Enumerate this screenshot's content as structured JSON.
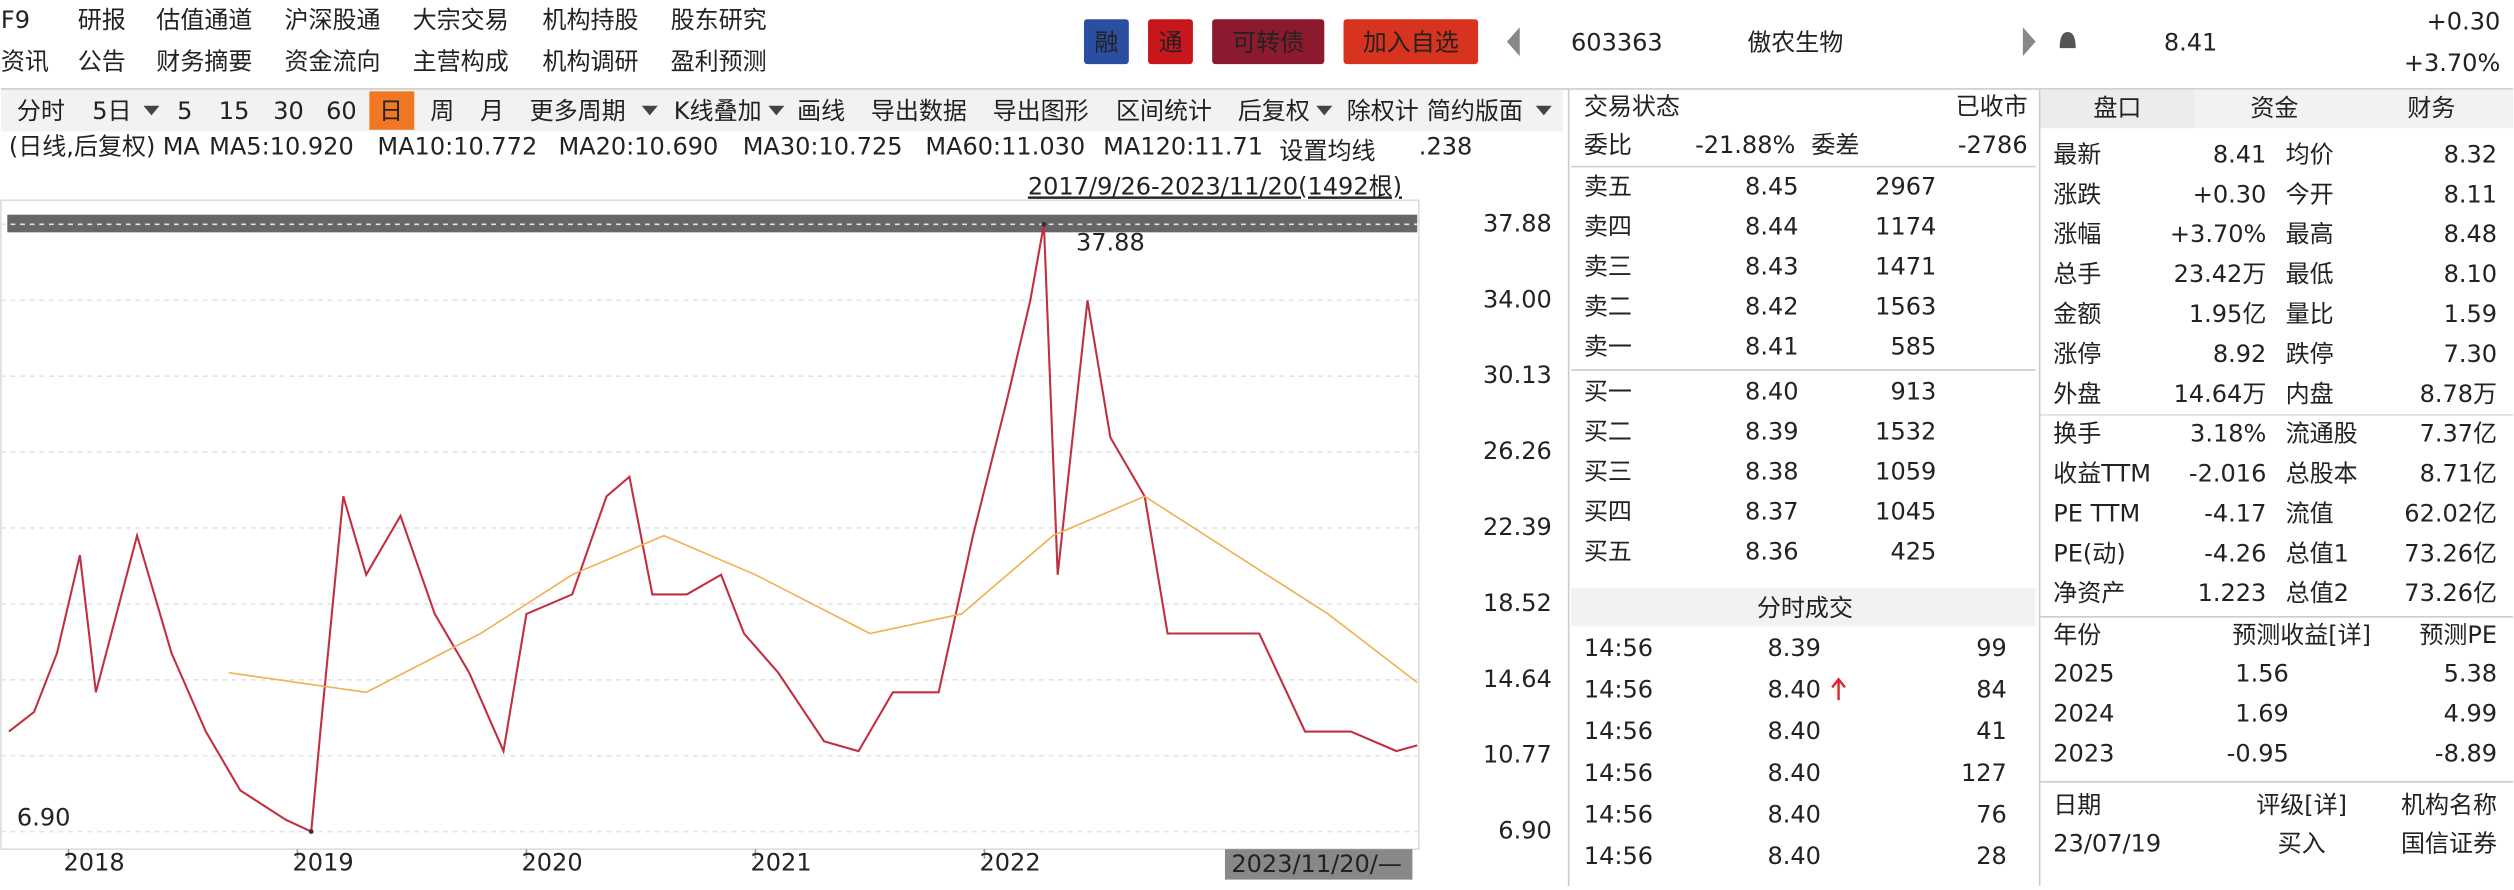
{
  "top_menu": {
    "rows": [
      [
        "F9",
        "研报",
        "估值通道",
        "沪深股通",
        "大宗交易",
        "机构持股",
        "股东研究"
      ],
      [
        "资讯",
        "公告",
        "财务摘要",
        "资金流向",
        "主营构成",
        "机构调研",
        "盈利预测"
      ]
    ]
  },
  "badges": [
    "融",
    "通",
    "可转债",
    "加入自选"
  ],
  "stock": {
    "code": "603363",
    "name": "傲农生物",
    "price": "8.41",
    "change": "+0.30",
    "change_pct": "+3.70%"
  },
  "toolbar": [
    "分时",
    "5日",
    "5",
    "15",
    "30",
    "60",
    "日",
    "周",
    "月",
    "更多周期",
    "K线叠加",
    "画线",
    "导出数据",
    "导出图形",
    "区间统计",
    "后复权",
    "除权计",
    "简约版面"
  ],
  "ma_legend": [
    "(日线,后复权)",
    "MA",
    "MA5:10.920",
    "MA10:10.772",
    "MA20:10.690",
    "MA30:10.725",
    "MA60:11.030",
    "MA120:11.71",
    ".238"
  ],
  "ma_button": "设置均线",
  "range_label": "2017/9/26-2023/11/20(1492根)",
  "chart_data": {
    "type": "line",
    "xlim": [
      2017.74,
      2023.89
    ],
    "xticks": [
      2018,
      2019,
      2020,
      2021,
      2022
    ],
    "x_end_label": "2023/11/20/—",
    "ylim": [
      6.9,
      37.88
    ],
    "yticks": [
      {
        "value": 6.9,
        "label": "6.90"
      },
      10.77,
      14.64,
      18.52,
      22.39,
      26.26,
      30.13,
      {
        "value": 34,
        "label": "34.00"
      },
      37.88
    ],
    "annotations": [
      {
        "x": 2022.26,
        "y": 37.88,
        "label": "37.88"
      },
      {
        "x": 2019.06,
        "y": 6.9,
        "label": "6.90"
      }
    ],
    "series": [
      {
        "name": "price",
        "color": "#c03040",
        "x": [
          2017.74,
          2017.85,
          2017.95,
          2018.05,
          2018.12,
          2018.3,
          2018.45,
          2018.6,
          2018.75,
          2018.95,
          2019.06,
          2019.1,
          2019.2,
          2019.3,
          2019.45,
          2019.6,
          2019.75,
          2019.9,
          2020.0,
          2020.2,
          2020.35,
          2020.45,
          2020.55,
          2020.7,
          2020.85,
          2020.95,
          2021.1,
          2021.3,
          2021.45,
          2021.6,
          2021.8,
          2021.95,
          2022.1,
          2022.2,
          2022.26,
          2022.32,
          2022.45,
          2022.55,
          2022.7,
          2022.8,
          2023.0,
          2023.2,
          2023.4,
          2023.6,
          2023.8,
          2023.89
        ],
        "values": [
          12,
          13,
          16,
          21,
          14,
          22,
          16,
          12,
          9,
          7.5,
          6.9,
          12,
          24,
          20,
          23,
          18,
          15,
          11,
          18,
          19,
          24,
          25,
          19,
          19,
          20,
          17,
          15,
          11.5,
          11,
          14,
          14,
          22,
          29,
          34,
          37.88,
          20,
          34,
          27,
          24,
          17,
          17,
          17,
          12,
          12,
          11,
          11.3
        ]
      },
      {
        "name": "ma",
        "color": "#f0b050",
        "x": [
          2018.7,
          2019.3,
          2019.8,
          2020.2,
          2020.6,
          2021.0,
          2021.5,
          2021.9,
          2022.3,
          2022.7,
          2023.1,
          2023.5,
          2023.89
        ],
        "values": [
          15,
          14,
          17,
          20,
          22,
          20,
          17,
          18,
          22,
          24,
          21,
          18,
          14.5
        ]
      }
    ]
  },
  "order_book": {
    "status_label": "交易状态",
    "status": "已收市",
    "ratio_label": "委比",
    "ratio": "-21.88%",
    "diff_label": "委差",
    "diff": "-2786",
    "rows": [
      [
        "卖五",
        "8.45",
        "2967"
      ],
      [
        "卖四",
        "8.44",
        "1174"
      ],
      [
        "卖三",
        "8.43",
        "1471"
      ],
      [
        "卖二",
        "8.42",
        "1563"
      ],
      [
        "卖一",
        "8.41",
        "585"
      ],
      [
        "买一",
        "8.40",
        "913"
      ],
      [
        "买二",
        "8.39",
        "1532"
      ],
      [
        "买三",
        "8.38",
        "1059"
      ],
      [
        "买四",
        "8.37",
        "1045"
      ],
      [
        "买五",
        "8.36",
        "425"
      ]
    ]
  },
  "trades": {
    "title": "分时成交",
    "rows": [
      [
        "14:56",
        "8.39",
        "99"
      ],
      [
        "14:56",
        "8.40",
        "84"
      ],
      [
        "14:56",
        "8.40",
        "41"
      ],
      [
        "14:56",
        "8.40",
        "127"
      ],
      [
        "14:56",
        "8.40",
        "76"
      ],
      [
        "14:56",
        "8.40",
        "28"
      ]
    ]
  },
  "tabs": [
    "盘口",
    "资金",
    "财务"
  ],
  "quote": [
    [
      "最新",
      "8.41",
      "均价",
      "8.32"
    ],
    [
      "涨跌",
      "+0.30",
      "今开",
      "8.11"
    ],
    [
      "涨幅",
      "+3.70%",
      "最高",
      "8.48"
    ],
    [
      "总手",
      "23.42万",
      "最低",
      "8.10"
    ],
    [
      "金额",
      "1.95亿",
      "量比",
      "1.59"
    ],
    [
      "涨停",
      "8.92",
      "跌停",
      "7.30"
    ],
    [
      "外盘",
      "14.64万",
      "内盘",
      "8.78万"
    ],
    [
      "换手",
      "3.18%",
      "流通股",
      "7.37亿"
    ],
    [
      "收益TTM",
      "-2.016",
      "总股本",
      "8.71亿"
    ],
    [
      "PE TTM",
      "-4.17",
      "流值",
      "62.02亿"
    ],
    [
      "PE(动)",
      "-4.26",
      "总值1",
      "73.26亿"
    ],
    [
      "净资产",
      "1.223",
      "总值2",
      "73.26亿"
    ]
  ],
  "forecast": {
    "header": [
      "年份",
      "预测收益[详]",
      "预测PE"
    ],
    "rows": [
      [
        "2025",
        "1.56",
        "5.38"
      ],
      [
        "2024",
        "1.69",
        "4.99"
      ],
      [
        "2023",
        "-0.95",
        "-8.89"
      ]
    ]
  },
  "ratings": {
    "header": [
      "日期",
      "评级[详]",
      "机构名称"
    ],
    "rows": [
      [
        "23/07/19",
        "买入",
        "国信证券"
      ]
    ]
  }
}
